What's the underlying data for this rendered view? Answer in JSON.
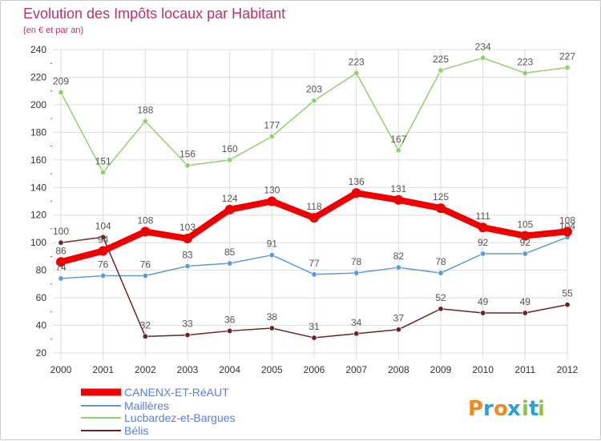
{
  "chart_data": {
    "type": "line",
    "title": "Evolution des Impôts locaux par Habitant",
    "subtitle": "(en € et par an)",
    "x": [
      "2000",
      "2001",
      "2002",
      "2003",
      "2004",
      "2005",
      "2006",
      "2007",
      "2008",
      "2009",
      "2010",
      "2011",
      "2012"
    ],
    "ylim": [
      20,
      240
    ],
    "yticks": [
      20,
      40,
      60,
      80,
      100,
      120,
      140,
      160,
      180,
      200,
      220,
      240
    ],
    "grid": true,
    "legend_position": "bottom-left",
    "series": [
      {
        "name": "CANENX-ET-RéAUT",
        "color": "#ee0000",
        "width": 8,
        "values": [
          86,
          94,
          108,
          103,
          124,
          130,
          118,
          136,
          131,
          125,
          111,
          105,
          108
        ]
      },
      {
        "name": "Maillères",
        "color": "#5b9bd5",
        "width": 1.5,
        "values": [
          74,
          76,
          76,
          83,
          85,
          91,
          77,
          78,
          82,
          78,
          92,
          92,
          104
        ]
      },
      {
        "name": "Lucbardez-et-Bargues",
        "color": "#8fd16a",
        "width": 1.5,
        "values": [
          209,
          151,
          188,
          156,
          160,
          177,
          203,
          223,
          167,
          225,
          234,
          223,
          227
        ]
      },
      {
        "name": "Bélis",
        "color": "#6e2323",
        "width": 1.5,
        "values": [
          100,
          104,
          32,
          33,
          36,
          38,
          31,
          34,
          37,
          52,
          49,
          49,
          55
        ]
      }
    ]
  },
  "brand": {
    "letters": [
      "P",
      "r",
      "o",
      "x",
      "i",
      "t",
      "i"
    ],
    "colors": [
      "#f08a1c",
      "#2aa0d8",
      "#f08a1c",
      "#2aa0d8",
      "#8cc63f",
      "#2aa0d8",
      "#8cc63f"
    ]
  }
}
